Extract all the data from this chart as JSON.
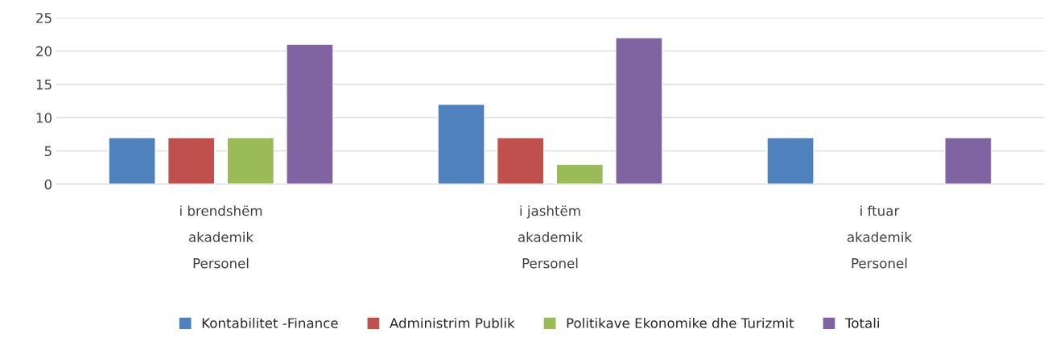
{
  "chart_data": {
    "type": "bar",
    "categories": [
      "i brendshëm\nakademik\nPersonel",
      "i jashtëm\nakademik\nPersonel",
      "i ftuar\nakademik\nPersonel"
    ],
    "series": [
      {
        "name": "Kontabilitet -Finance",
        "color": "#4f81bd",
        "values": [
          7,
          12,
          7
        ]
      },
      {
        "name": "Administrim Publik",
        "color": "#c0504d",
        "values": [
          7,
          7,
          null
        ]
      },
      {
        "name": "Politikave Ekonomike dhe Turizmit",
        "color": "#9bbb59",
        "values": [
          7,
          3,
          null
        ]
      },
      {
        "name": "Totali",
        "color": "#8064a2",
        "values": [
          21,
          22,
          7
        ]
      }
    ],
    "ylim": [
      0,
      25
    ],
    "yticks": [
      0,
      5,
      10,
      15,
      20,
      25
    ],
    "grid": "y",
    "legend": "bottom"
  }
}
